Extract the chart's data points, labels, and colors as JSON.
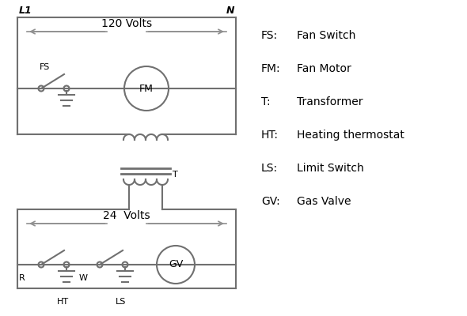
{
  "background_color": "#ffffff",
  "line_color": "#707070",
  "arrow_color": "#909090",
  "text_color": "#000000",
  "legend_items": [
    [
      "FS:",
      "Fan Switch"
    ],
    [
      "FM:",
      "Fan Motor"
    ],
    [
      "T:",
      "Transformer"
    ],
    [
      "HT:",
      "Heating thermostat"
    ],
    [
      "LS:",
      "Limit Switch"
    ],
    [
      "GV:",
      "Gas Valve"
    ]
  ],
  "L1_label": "L1",
  "N_label": "N",
  "volts120_label": "120 Volts",
  "volts24_label": "24  Volts",
  "FS_label": "FS",
  "FM_label": "FM",
  "T_label": "T",
  "R_label": "R",
  "W_label": "W",
  "HT_label": "HT",
  "LS_label": "LS",
  "GV_label": "GV"
}
